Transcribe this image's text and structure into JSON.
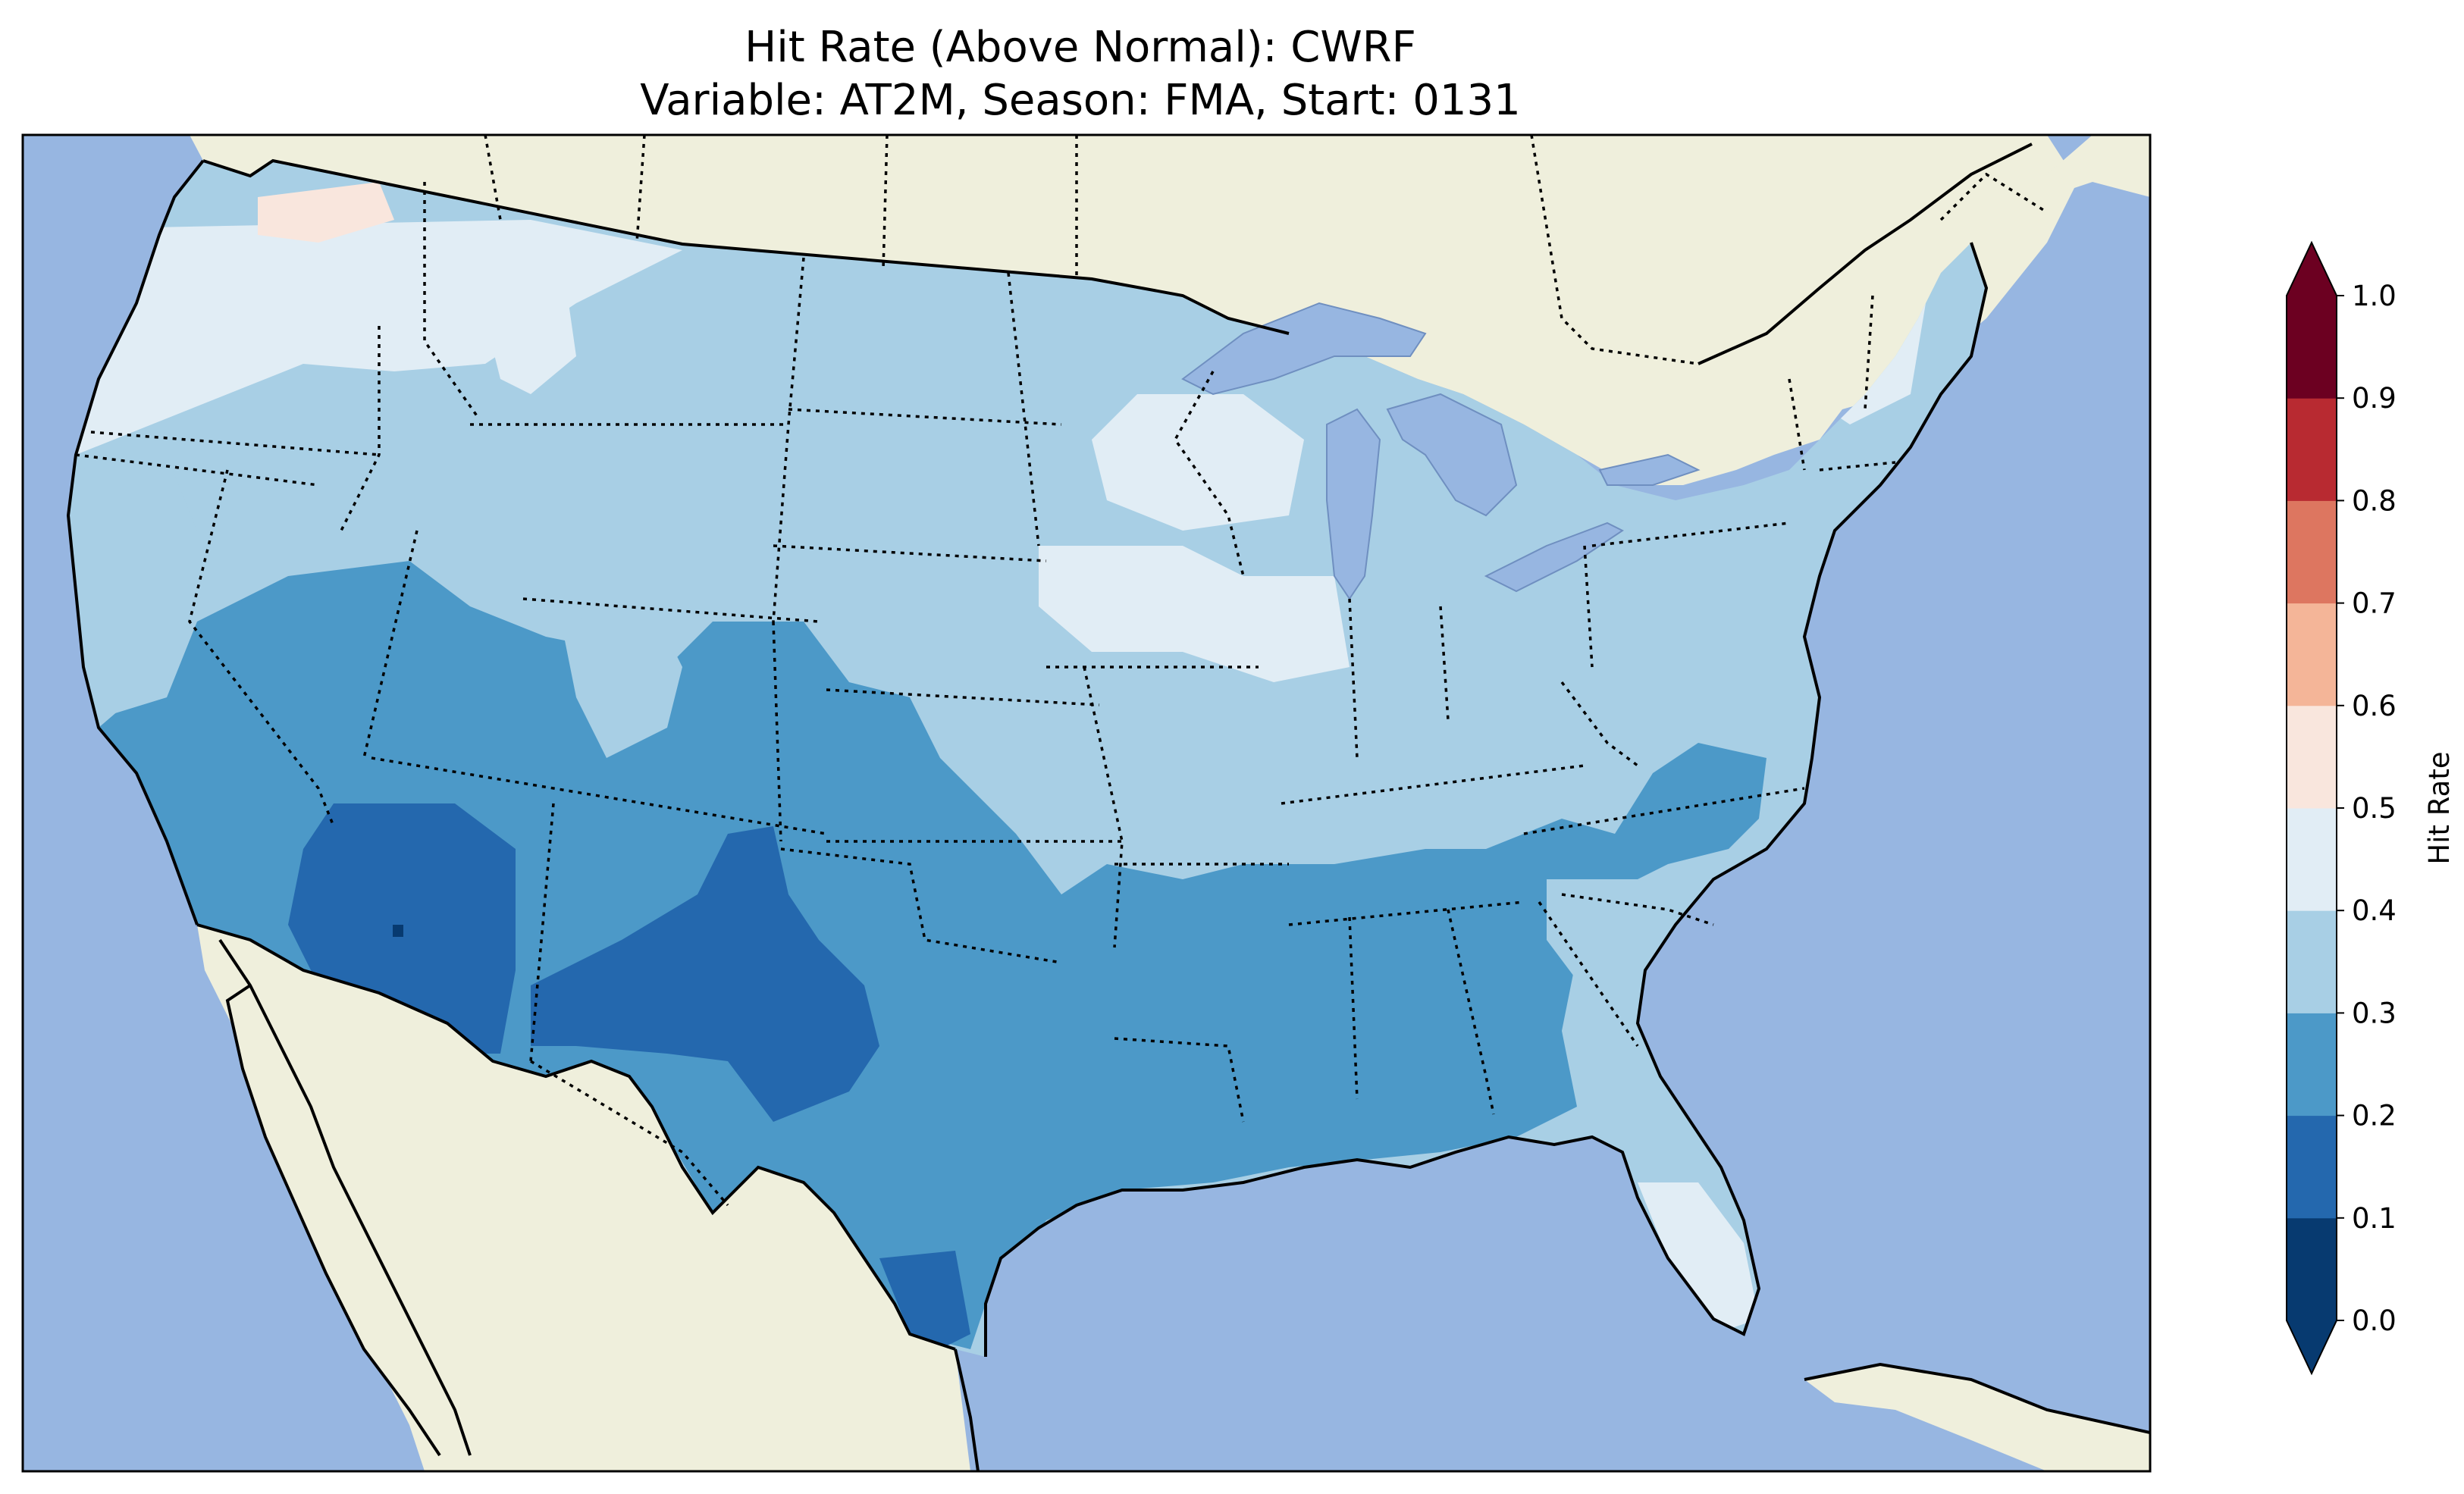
{
  "title": {
    "line1": "Hit Rate (Above Normal): CWRF",
    "line2": "Variable: AT2M, Season: FMA, Start: 0131"
  },
  "colors": {
    "ocean": "#97b6e1",
    "land": "#efefdc",
    "lake": "#97b6e1"
  },
  "colorbar": {
    "label": "Hit Rate",
    "ticks": [
      "0.0",
      "0.1",
      "0.2",
      "0.3",
      "0.4",
      "0.5",
      "0.6",
      "0.7",
      "0.8",
      "0.9",
      "1.0"
    ],
    "bins": [
      {
        "range": [
          0.0,
          0.1
        ],
        "color": "#073a70"
      },
      {
        "range": [
          0.1,
          0.2
        ],
        "color": "#2468ae"
      },
      {
        "range": [
          0.2,
          0.3
        ],
        "color": "#4c99c8"
      },
      {
        "range": [
          0.3,
          0.4
        ],
        "color": "#a8cfe5"
      },
      {
        "range": [
          0.4,
          0.5
        ],
        "color": "#e1edf5"
      },
      {
        "range": [
          0.5,
          0.6
        ],
        "color": "#f9e6dd"
      },
      {
        "range": [
          0.6,
          0.7
        ],
        "color": "#f4b598"
      },
      {
        "range": [
          0.7,
          0.8
        ],
        "color": "#dd7660"
      },
      {
        "range": [
          0.8,
          0.9
        ],
        "color": "#b82a31"
      },
      {
        "range": [
          0.9,
          1.0
        ],
        "color": "#6c0021"
      }
    ],
    "extend_under_color": "#073a70",
    "extend_over_color": "#6c0021"
  }
}
